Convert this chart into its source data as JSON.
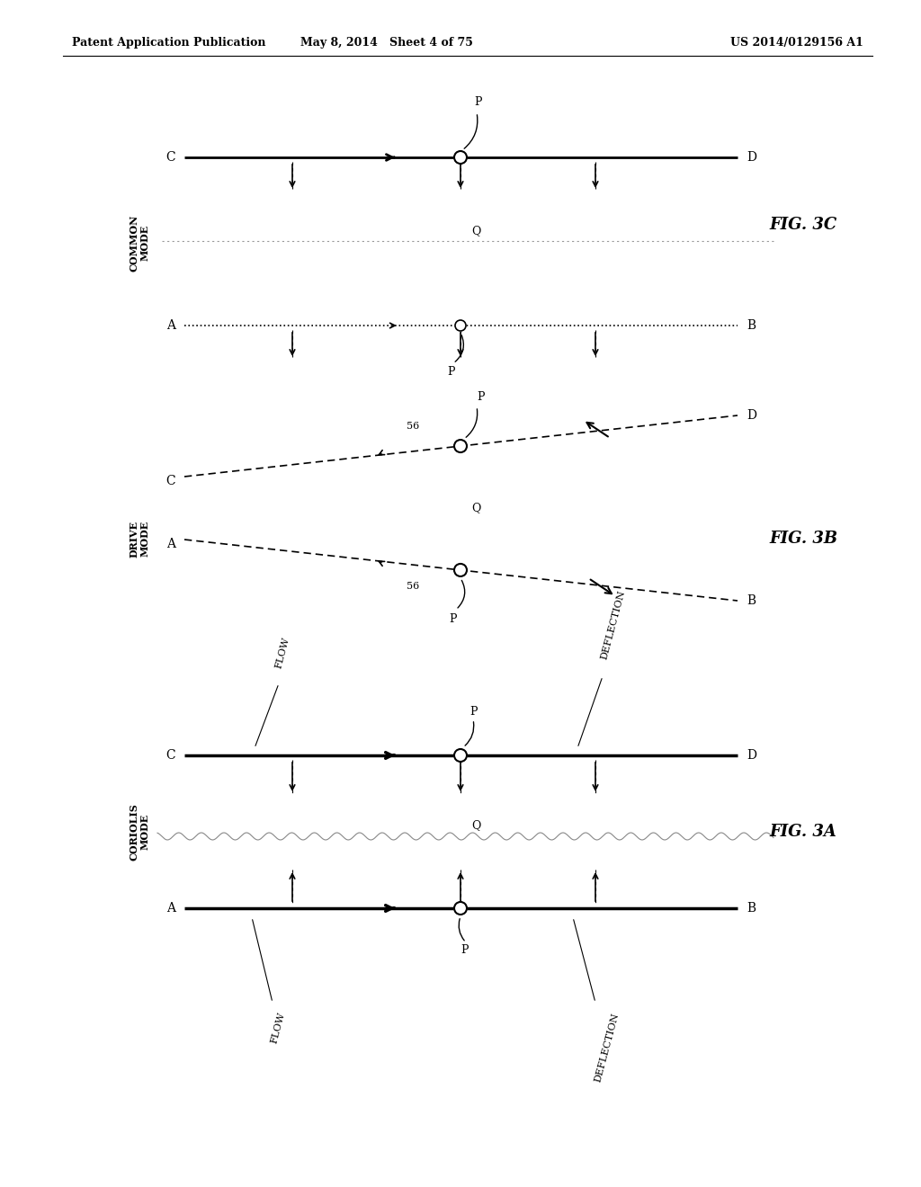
{
  "title_left": "Patent Application Publication",
  "title_mid": "May 8, 2014   Sheet 4 of 75",
  "title_right": "US 2014/0129156 A1",
  "background_color": "#ffffff",
  "line_color": "#000000",
  "fig3c_label": "FIG. 3C",
  "fig3b_label": "FIG. 3B",
  "fig3a_label": "FIG. 3A",
  "common_mode": "COMMON\nMODE",
  "drive_mode": "DRIVE\nMODE",
  "coriolis_mode": "CORIOLIS\nMODE"
}
